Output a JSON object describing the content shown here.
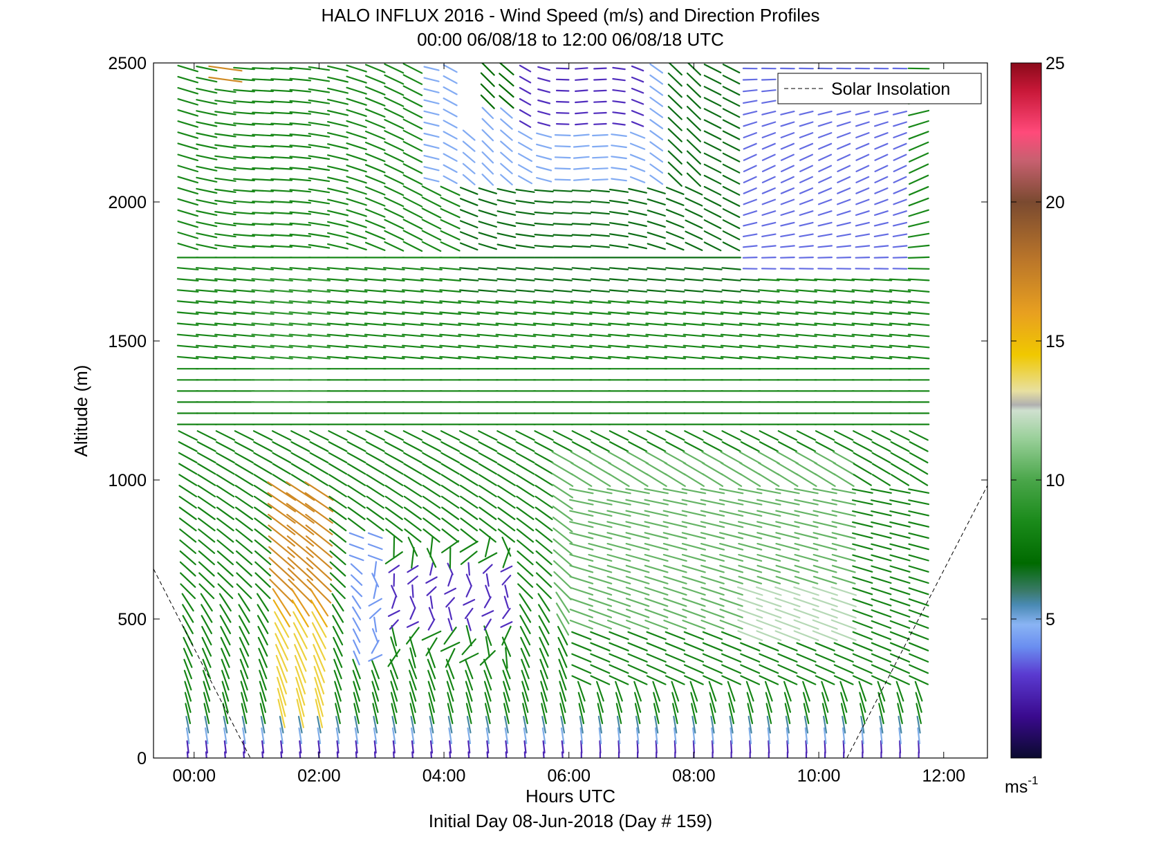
{
  "chart_data": {
    "type": "quiver",
    "title": "HALO INFLUX 2016 - Wind Speed (m/s) and Direction Profiles",
    "subtitle": "00:00 06/08/18 to 12:00 06/08/18  UTC",
    "xlabel": "Hours UTC",
    "xlabel2": "Initial Day 08-Jun-2018 (Day # 159)",
    "ylabel": "Altitude (m)",
    "xlim_hours": [
      -0.65,
      12.7
    ],
    "ylim": [
      0,
      2500
    ],
    "x_ticks": [
      {
        "hour": 0,
        "label": "00:00"
      },
      {
        "hour": 2,
        "label": "02:00"
      },
      {
        "hour": 4,
        "label": "04:00"
      },
      {
        "hour": 6,
        "label": "06:00"
      },
      {
        "hour": 8,
        "label": "08:00"
      },
      {
        "hour": 10,
        "label": "10:00"
      },
      {
        "hour": 12,
        "label": "12:00"
      }
    ],
    "y_ticks": [
      {
        "value": 0,
        "label": "0"
      },
      {
        "value": 500,
        "label": "500"
      },
      {
        "value": 1000,
        "label": "1000"
      },
      {
        "value": 1500,
        "label": "1500"
      },
      {
        "value": 2000,
        "label": "2000"
      },
      {
        "value": 2500,
        "label": "2500"
      }
    ],
    "legend": {
      "entry": "Solar Insolation",
      "style": "dashed",
      "placement": "top-right"
    },
    "colorbar": {
      "range": [
        0,
        25
      ],
      "ticks": [
        {
          "value": 5,
          "label": "5"
        },
        {
          "value": 10,
          "label": "10"
        },
        {
          "value": 15,
          "label": "15"
        },
        {
          "value": 20,
          "label": "20"
        },
        {
          "value": 25,
          "label": "25"
        }
      ],
      "unit": "ms",
      "unit_exponent": "-1",
      "stops": [
        {
          "v": 0,
          "c": "#0a0a2e"
        },
        {
          "v": 1.5,
          "c": "#3a0a8e"
        },
        {
          "v": 3,
          "c": "#5a3ad0"
        },
        {
          "v": 4,
          "c": "#6a8ef0"
        },
        {
          "v": 4.8,
          "c": "#8ab4f4"
        },
        {
          "v": 5.5,
          "c": "#4a8ab4"
        },
        {
          "v": 6,
          "c": "#3a7a6a"
        },
        {
          "v": 7,
          "c": "#006a00"
        },
        {
          "v": 8.5,
          "c": "#1a8a1a"
        },
        {
          "v": 10,
          "c": "#4aa64a"
        },
        {
          "v": 11.5,
          "c": "#9ad09a"
        },
        {
          "v": 12.5,
          "c": "#cfe0cf"
        },
        {
          "v": 12.7,
          "c": "#b0b0b0"
        },
        {
          "v": 13.2,
          "c": "#e8e0a0"
        },
        {
          "v": 14.5,
          "c": "#f0c800"
        },
        {
          "v": 16,
          "c": "#e8a020"
        },
        {
          "v": 18,
          "c": "#b8742a"
        },
        {
          "v": 20,
          "c": "#7a4a30"
        },
        {
          "v": 21.5,
          "c": "#c86070"
        },
        {
          "v": 22.5,
          "c": "#ff4a7a"
        },
        {
          "v": 24,
          "c": "#c81838"
        },
        {
          "v": 25,
          "c": "#8a0a1a"
        }
      ]
    },
    "solar_insolation": {
      "morning": [
        [
          -0.65,
          680
        ],
        [
          0.9,
          0
        ]
      ],
      "evening": [
        [
          10.45,
          0
        ],
        [
          12.7,
          980
        ]
      ]
    },
    "profile_spacing_hours": 0.3,
    "levels_m": [
      0,
      2500,
      40
    ]
  }
}
